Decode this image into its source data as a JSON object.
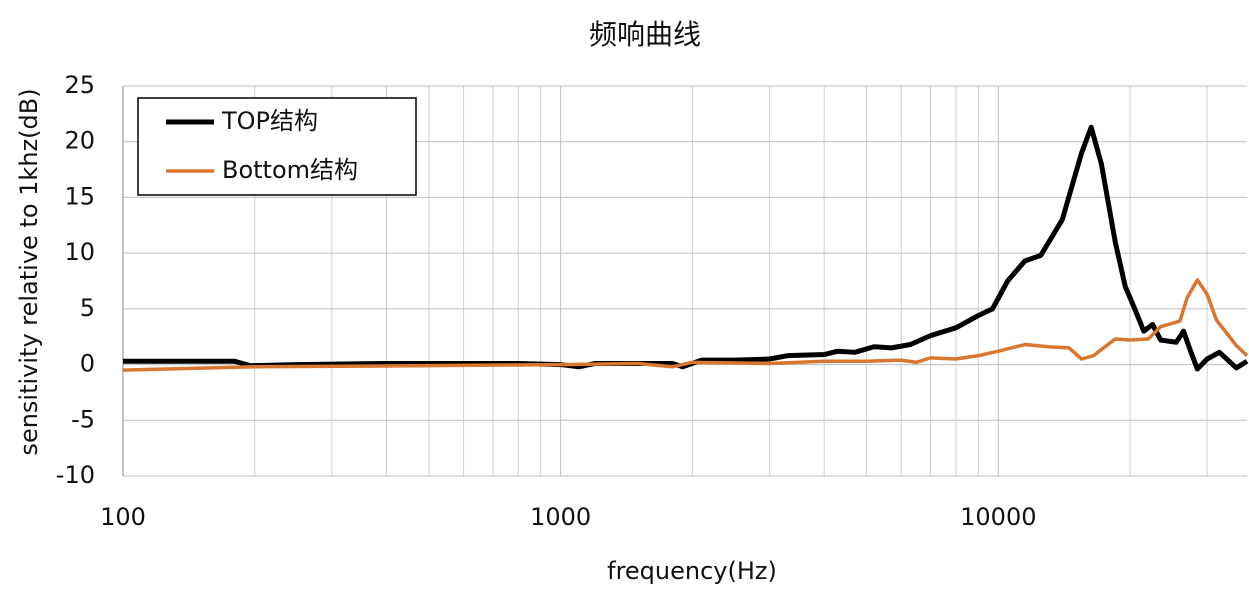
{
  "chart_data": {
    "type": "line",
    "title": "频响曲线",
    "x_label": "frequency(Hz)",
    "y_label": "sensitivity relative to 1khz(dB)",
    "x_scale": "log",
    "grid": true,
    "minor_grid": true,
    "legend": "upper-left",
    "xlim": [
      100,
      37000
    ],
    "xticks": [
      100,
      1000,
      10000
    ],
    "ylim": [
      -10,
      25
    ],
    "yticks": [
      -10,
      -5,
      0,
      5,
      10,
      15,
      20,
      25
    ],
    "series": [
      {
        "name": "TOP结构",
        "color": "#000000",
        "x": [
          100,
          150,
          180,
          195,
          250,
          400,
          800,
          1000,
          1100,
          1200,
          1800,
          1900,
          2100,
          2500,
          3000,
          3300,
          4000,
          4300,
          4700,
          5200,
          5700,
          6300,
          7000,
          8000,
          9000,
          9700,
          10500,
          11500,
          12500,
          14000,
          15500,
          16300,
          17200,
          18500,
          19500,
          20500,
          21500,
          22500,
          23500,
          25500,
          26500,
          27500,
          28500,
          30000,
          32000,
          35000,
          37000
        ],
        "values": [
          0.3,
          0.3,
          0.3,
          -0.1,
          0,
          0.1,
          0.1,
          0,
          -0.2,
          0.1,
          0.1,
          -0.2,
          0.4,
          0.4,
          0.5,
          0.8,
          0.9,
          1.2,
          1.1,
          1.6,
          1.5,
          1.8,
          2.6,
          3.3,
          4.4,
          5,
          7.5,
          9.3,
          9.8,
          13,
          19,
          21.3,
          18,
          11,
          7,
          5,
          3,
          3.6,
          2.2,
          2,
          3,
          1.2,
          -0.4,
          0.5,
          1.1,
          -0.3,
          0.3
        ]
      },
      {
        "name": "Bottom结构",
        "color": "#d9762f",
        "x": [
          100,
          200,
          500,
          1000,
          1500,
          1800,
          2000,
          3000,
          4000,
          5000,
          6000,
          6500,
          7000,
          8000,
          9000,
          10000,
          11500,
          13000,
          14500,
          15500,
          16500,
          18500,
          20000,
          22000,
          23500,
          26000,
          27000,
          28500,
          30000,
          31500,
          35000,
          37000
        ],
        "values": [
          -0.5,
          -0.2,
          -0.1,
          0,
          0.1,
          -0.2,
          0.2,
          0.1,
          0.3,
          0.3,
          0.4,
          0.2,
          0.6,
          0.5,
          0.8,
          1.2,
          1.8,
          1.6,
          1.5,
          0.5,
          0.8,
          2.3,
          2.2,
          2.3,
          3.4,
          3.9,
          6,
          7.6,
          6.3,
          4,
          1.7,
          0.8
        ]
      }
    ]
  }
}
